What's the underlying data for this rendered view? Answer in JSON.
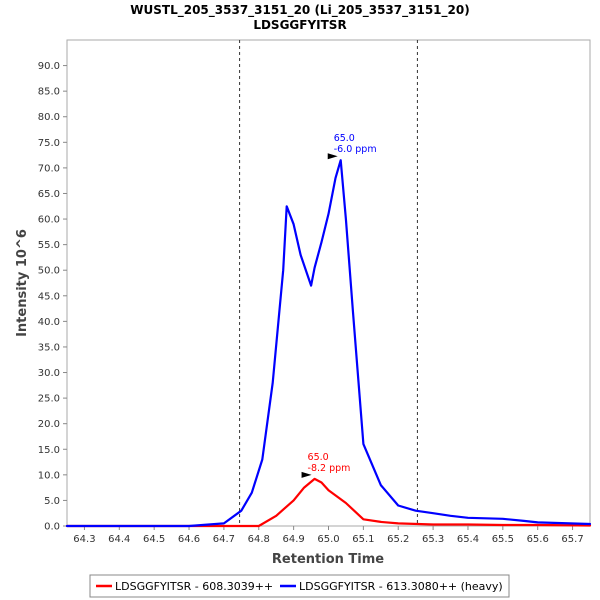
{
  "chart_data": {
    "type": "line",
    "title": "WUSTL_205_3537_3151_20 (Li_205_3537_3151_20)",
    "subtitle": "LDSGGFYITSR",
    "xlabel": "Retention Time",
    "ylabel": "Intensity 10^6",
    "xlim": [
      64.25,
      65.75
    ],
    "ylim": [
      0,
      95
    ],
    "x_ticks": [
      "64.3",
      "64.4",
      "64.5",
      "64.6",
      "64.7",
      "64.8",
      "64.9",
      "65.0",
      "65.1",
      "65.2",
      "65.3",
      "65.4",
      "65.5",
      "65.6",
      "65.7"
    ],
    "y_ticks": [
      "0.0",
      "5.0",
      "10.0",
      "15.0",
      "20.0",
      "25.0",
      "30.0",
      "35.0",
      "40.0",
      "45.0",
      "50.0",
      "55.0",
      "60.0",
      "65.0",
      "70.0",
      "75.0",
      "80.0",
      "85.0",
      "90.0"
    ],
    "grid": false,
    "legend_position": "bottom",
    "integration_boundaries": [
      64.745,
      65.255
    ],
    "series": [
      {
        "name": "LDSGGFYITSR - 608.3039++",
        "color": "#ff0000",
        "points": [
          [
            64.25,
            0.0
          ],
          [
            64.8,
            0.0
          ],
          [
            64.85,
            2.0
          ],
          [
            64.9,
            5.0
          ],
          [
            64.93,
            7.5
          ],
          [
            64.96,
            9.2
          ],
          [
            64.98,
            8.5
          ],
          [
            65.0,
            7.0
          ],
          [
            65.05,
            4.5
          ],
          [
            65.1,
            1.3
          ],
          [
            65.15,
            0.8
          ],
          [
            65.2,
            0.5
          ],
          [
            65.3,
            0.3
          ],
          [
            65.4,
            0.3
          ],
          [
            65.5,
            0.2
          ],
          [
            65.6,
            0.2
          ],
          [
            65.75,
            0.1
          ]
        ]
      },
      {
        "name": "LDSGGFYITSR - 613.3080++ (heavy)",
        "color": "#0000ff",
        "points": [
          [
            64.25,
            0.0
          ],
          [
            64.6,
            0.0
          ],
          [
            64.7,
            0.5
          ],
          [
            64.75,
            3.0
          ],
          [
            64.78,
            6.5
          ],
          [
            64.81,
            13.0
          ],
          [
            64.84,
            28.0
          ],
          [
            64.87,
            50.0
          ],
          [
            64.88,
            62.5
          ],
          [
            64.9,
            59.0
          ],
          [
            64.92,
            53.0
          ],
          [
            64.95,
            47.0
          ],
          [
            64.96,
            50.5
          ],
          [
            64.98,
            55.5
          ],
          [
            65.0,
            61.0
          ],
          [
            65.02,
            68.0
          ],
          [
            65.035,
            71.5
          ],
          [
            65.05,
            60.0
          ],
          [
            65.07,
            42.0
          ],
          [
            65.1,
            16.0
          ],
          [
            65.15,
            8.0
          ],
          [
            65.2,
            4.0
          ],
          [
            65.25,
            3.0
          ],
          [
            65.3,
            2.5
          ],
          [
            65.35,
            2.0
          ],
          [
            65.4,
            1.6
          ],
          [
            65.5,
            1.4
          ],
          [
            65.56,
            1.0
          ],
          [
            65.6,
            0.7
          ],
          [
            65.75,
            0.4
          ]
        ]
      }
    ],
    "annotations": [
      {
        "x": 64.96,
        "y": 9.2,
        "text": "65.0",
        "text2": "-8.2 ppm",
        "color": "#ff0000"
      },
      {
        "x": 65.035,
        "y": 71.5,
        "text": "65.0",
        "text2": "-6.0 ppm",
        "color": "#0000ff"
      }
    ]
  }
}
